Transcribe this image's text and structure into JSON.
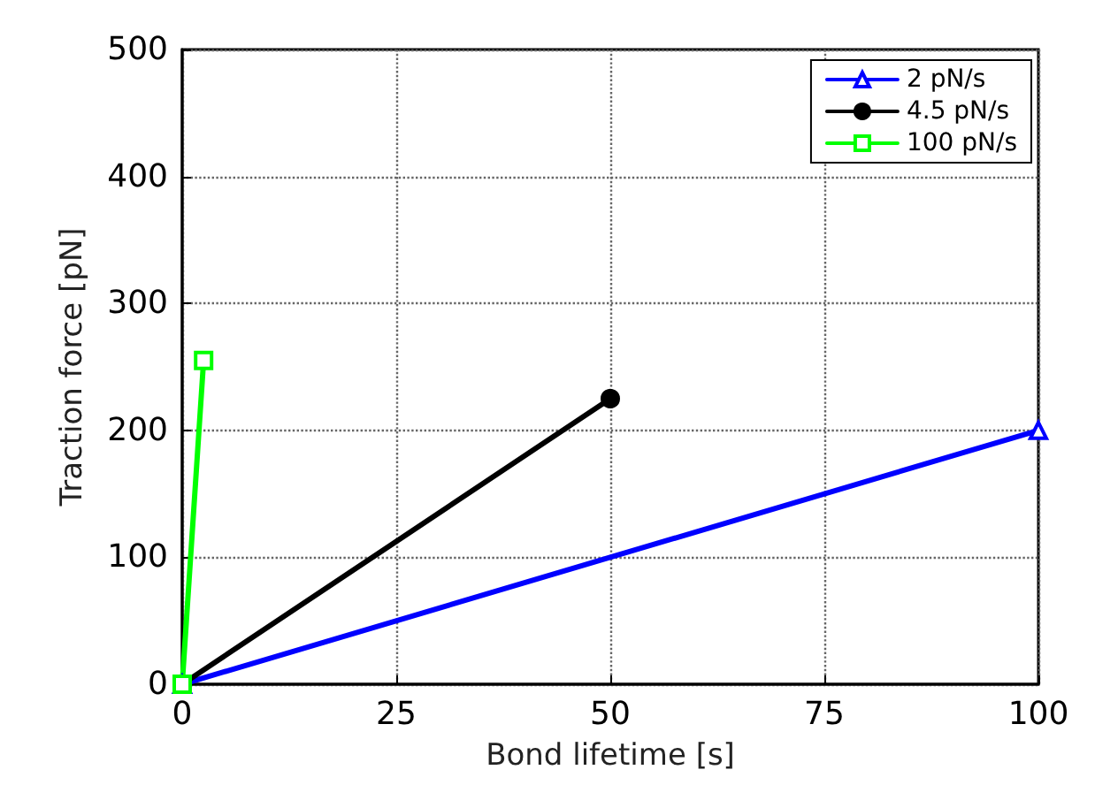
{
  "chart_data": {
    "type": "line",
    "xlabel": "Bond lifetime [s]",
    "ylabel": "Traction force [pN]",
    "xlim": [
      0,
      100
    ],
    "xticks": [
      0,
      25,
      50,
      75,
      100
    ],
    "ylim": [
      0,
      500
    ],
    "yticks": [
      0,
      100,
      200,
      300,
      400,
      500
    ],
    "grid": true,
    "legend": "top right",
    "line_style": "solid",
    "series": [
      {
        "name": "2 pN/s",
        "color": "#0000ff",
        "marker": "triangle",
        "x": [
          0,
          100
        ],
        "values": [
          0,
          200
        ]
      },
      {
        "name": "4.5 pN/s",
        "color": "#000000",
        "marker": "circle",
        "x": [
          0,
          50
        ],
        "values": [
          0,
          225
        ]
      },
      {
        "name": "100 pN/s",
        "color": "#00ff00",
        "marker": "square",
        "x": [
          0,
          2.5
        ],
        "values": [
          0,
          255
        ]
      }
    ]
  }
}
